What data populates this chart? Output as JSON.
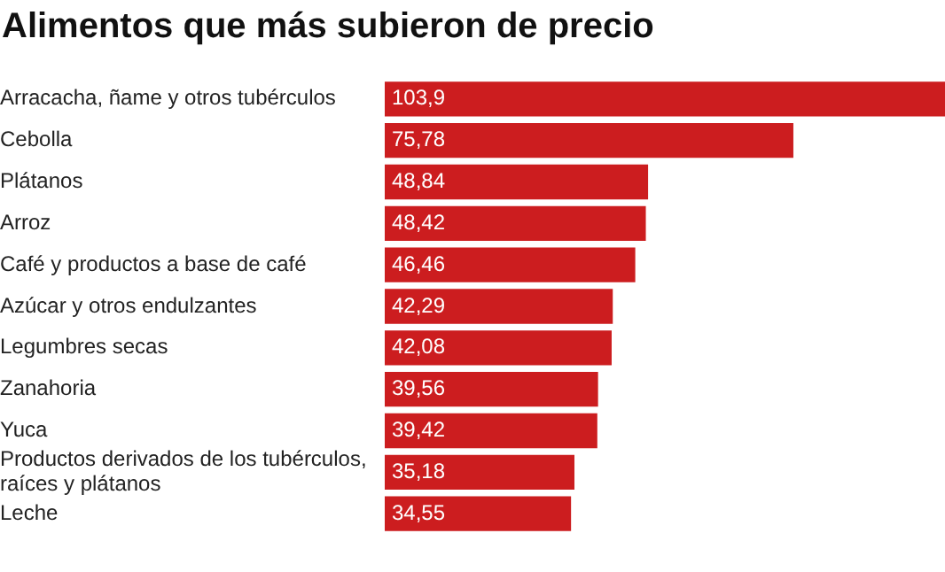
{
  "chart_data": {
    "type": "bar",
    "title": "Alimentos que más subieron de precio",
    "orientation": "horizontal",
    "data_labels": true,
    "grid": false,
    "legend": false,
    "categories": [
      "Arracacha, ñame y otros tubérculos",
      "Cebolla",
      "Plátanos",
      "Arroz",
      "Café y productos a base de café",
      "Azúcar y otros endulzantes",
      "Legumbres secas",
      "Zanahoria",
      "Yuca",
      "Productos derivados de los tubérculos, raíces y plátanos",
      "Leche"
    ],
    "values": [
      103.9,
      75.78,
      48.84,
      48.42,
      46.46,
      42.29,
      42.08,
      39.56,
      39.42,
      35.18,
      34.55
    ],
    "value_labels": [
      "103,9",
      "75,78",
      "48,84",
      "48,42",
      "46,46",
      "42,29",
      "42,08",
      "39,56",
      "39,42",
      "35,18",
      "34,55"
    ],
    "color": "#cc1d1f"
  }
}
